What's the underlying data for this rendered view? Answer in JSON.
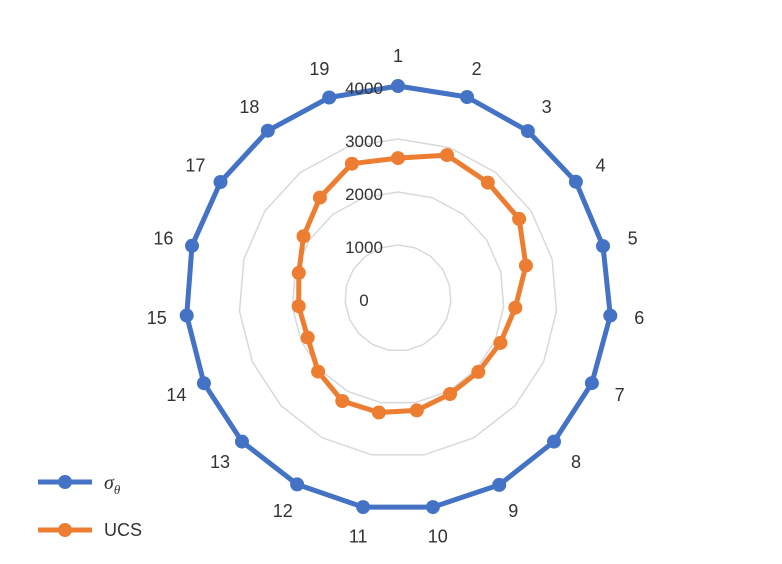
{
  "chart_data": {
    "type": "radar",
    "categories": [
      "1",
      "2",
      "3",
      "4",
      "5",
      "6",
      "7",
      "8",
      "9",
      "10",
      "11",
      "12",
      "13",
      "14",
      "15",
      "16",
      "17",
      "18",
      "19"
    ],
    "rlim": [
      0,
      4000
    ],
    "r_ticks": [
      "0",
      "1000",
      "2000",
      "3000",
      "4000"
    ],
    "grid": true,
    "legend": "bottom-left",
    "series": [
      {
        "name": "σθ",
        "color": "#4472C4",
        "values": [
          4000,
          4010,
          3990,
          4010,
          3990,
          4020,
          3995,
          4000,
          4010,
          4000,
          4000,
          4000,
          4000,
          4000,
          4000,
          4010,
          4000,
          4000,
          4000
        ]
      },
      {
        "name": "UCS",
        "color": "#ED7D31",
        "values": [
          2640,
          2850,
          2760,
          2730,
          2490,
          2220,
          2110,
          2060,
          2060,
          2150,
          2190,
          2210,
          2050,
          1860,
          1880,
          1930,
          2130,
          2400,
          2680
        ]
      }
    ]
  },
  "legend": {
    "sigma_symbol": "σ",
    "sigma_sub": "θ",
    "ucs_label": "UCS"
  }
}
